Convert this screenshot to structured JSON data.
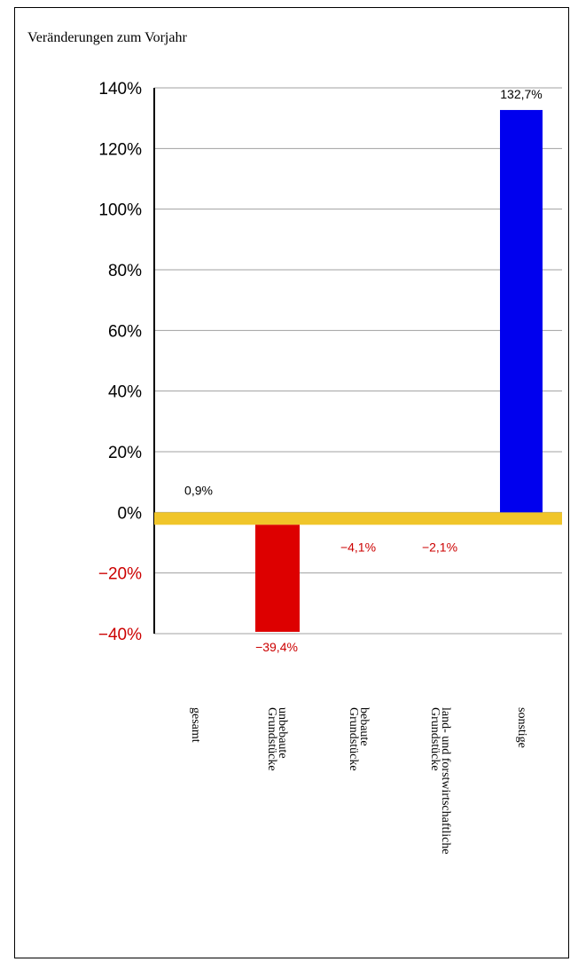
{
  "title": "Veränderungen zum Vorjahr",
  "chart_data": {
    "type": "bar",
    "title": "Veränderungen zum Vorjahr",
    "xlabel": "",
    "ylabel": "",
    "ylim": [
      -40,
      140
    ],
    "yticks": [
      140,
      120,
      100,
      80,
      60,
      40,
      20,
      0,
      -20,
      -40
    ],
    "ytick_labels": [
      "140%",
      "120%",
      "100%",
      "80%",
      "60%",
      "40%",
      "20%",
      "0%",
      "−20%",
      "−40%"
    ],
    "grid": true,
    "categories": [
      [
        "gesamt"
      ],
      [
        "unbebaute",
        "Grundstücke"
      ],
      [
        "bebaute",
        "Grundstücke"
      ],
      [
        "land- und forstwirtschaftliche",
        "Grundstücke"
      ],
      [
        "sonstige"
      ]
    ],
    "values": [
      0.9,
      -39.4,
      -4.1,
      -2.1,
      132.7
    ],
    "value_labels": [
      "0,9%",
      "−39,4%",
      "−4,1%",
      "−2,1%",
      "132,7%"
    ],
    "colors": [
      "#f0c52a",
      "#dd0000",
      "#f0c52a",
      "#f0c52a",
      "#0000ee"
    ],
    "positive_label_color": "#000000",
    "negative_label_color": "#cc0000",
    "zero_band_color": "#f0c52a"
  }
}
